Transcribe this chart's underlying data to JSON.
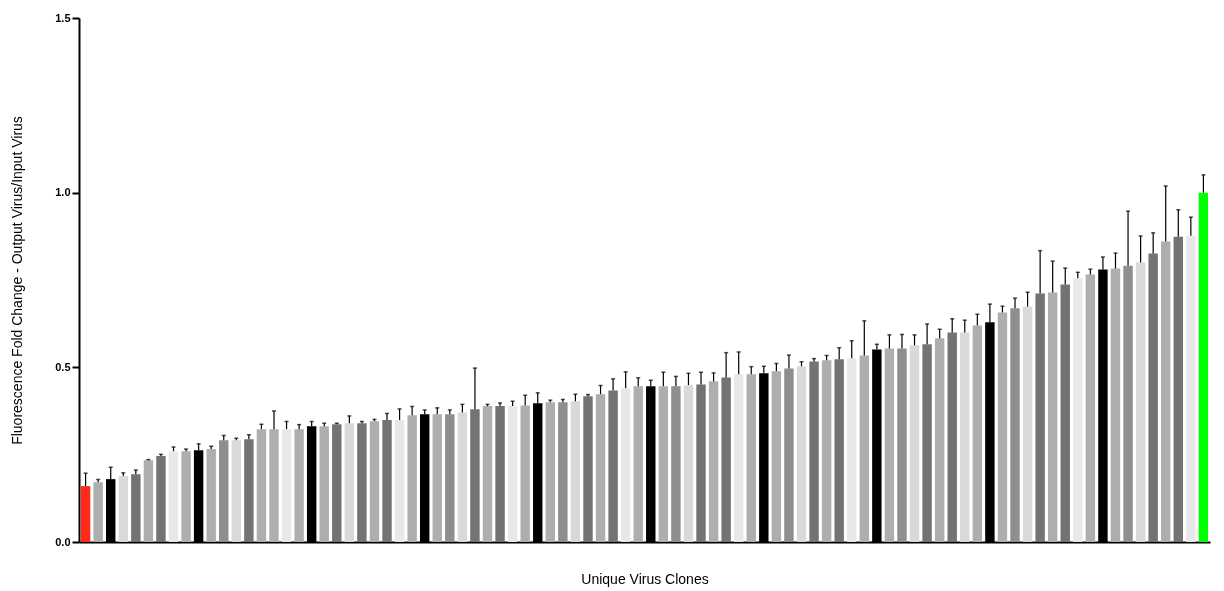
{
  "chart_data": {
    "type": "bar",
    "xlabel": "Unique Virus Clones",
    "ylabel": "Fluorescence Fold Change - Output Virus/Input Virus",
    "categories": [
      null,
      null,
      null,
      null,
      null,
      null,
      null,
      null,
      null,
      null,
      null,
      null,
      null,
      null,
      null,
      null,
      null,
      null,
      null,
      null,
      null,
      null,
      null,
      null,
      null,
      null,
      null,
      null,
      null,
      null,
      null,
      null,
      null,
      null,
      null,
      null,
      null,
      null,
      null,
      null,
      null,
      null,
      null,
      null,
      null,
      null,
      null,
      null,
      null,
      null,
      null,
      null,
      null,
      null,
      null,
      null,
      null,
      null,
      null,
      null,
      null,
      null,
      null,
      null,
      null,
      null,
      null,
      null,
      null,
      null,
      null,
      null,
      null,
      null,
      null,
      null,
      null,
      null,
      null,
      null,
      null,
      null,
      null,
      null,
      null,
      null,
      null,
      null,
      null,
      null
    ],
    "values": [
      0.16,
      0.171,
      0.18,
      0.189,
      0.194,
      0.234,
      0.246,
      0.26,
      0.26,
      0.263,
      0.266,
      0.291,
      0.291,
      0.294,
      0.323,
      0.323,
      0.323,
      0.323,
      0.331,
      0.331,
      0.337,
      0.34,
      0.34,
      0.346,
      0.349,
      0.349,
      0.363,
      0.366,
      0.366,
      0.366,
      0.371,
      0.38,
      0.389,
      0.389,
      0.389,
      0.391,
      0.397,
      0.4,
      0.4,
      0.403,
      0.417,
      0.423,
      0.434,
      0.44,
      0.446,
      0.446,
      0.446,
      0.446,
      0.449,
      0.451,
      0.46,
      0.471,
      0.48,
      0.48,
      0.483,
      0.489,
      0.497,
      0.503,
      0.517,
      0.52,
      0.523,
      0.526,
      0.534,
      0.551,
      0.554,
      0.554,
      0.563,
      0.566,
      0.583,
      0.6,
      0.6,
      0.62,
      0.629,
      0.657,
      0.669,
      0.674,
      0.711,
      0.714,
      0.737,
      0.755,
      0.766,
      0.78,
      0.783,
      0.791,
      0.8,
      0.826,
      0.86,
      0.874,
      0.877,
      1.0
    ],
    "errors": [
      [
        0.16,
        0.197
      ],
      [
        0.171,
        0.179
      ],
      [
        0.18,
        0.214
      ],
      [
        0.189,
        0.198
      ],
      [
        0.194,
        0.206
      ],
      [
        0.234,
        0.236
      ],
      [
        0.246,
        0.251
      ],
      [
        0.26,
        0.272
      ],
      [
        0.26,
        0.266
      ],
      [
        0.263,
        0.281
      ],
      [
        0.266,
        0.274
      ],
      [
        0.291,
        0.305
      ],
      [
        0.291,
        0.297
      ],
      [
        0.294,
        0.307
      ],
      [
        0.323,
        0.337
      ],
      [
        0.323,
        0.375
      ],
      [
        0.323,
        0.345
      ],
      [
        0.323,
        0.336
      ],
      [
        0.331,
        0.345
      ],
      [
        0.331,
        0.34
      ],
      [
        0.337,
        0.34
      ],
      [
        0.34,
        0.361
      ],
      [
        0.34,
        0.345
      ],
      [
        0.346,
        0.351
      ],
      [
        0.349,
        0.368
      ],
      [
        0.349,
        0.381
      ],
      [
        0.363,
        0.388
      ],
      [
        0.366,
        0.378
      ],
      [
        0.366,
        0.384
      ],
      [
        0.366,
        0.378
      ],
      [
        0.371,
        0.394
      ],
      [
        0.38,
        0.498
      ],
      [
        0.389,
        0.394
      ],
      [
        0.389,
        0.398
      ],
      [
        0.389,
        0.403
      ],
      [
        0.391,
        0.42
      ],
      [
        0.397,
        0.427
      ],
      [
        0.4,
        0.406
      ],
      [
        0.4,
        0.408
      ],
      [
        0.403,
        0.423
      ],
      [
        0.417,
        0.422
      ],
      [
        0.423,
        0.448
      ],
      [
        0.434,
        0.467
      ],
      [
        0.44,
        0.487
      ],
      [
        0.446,
        0.47
      ],
      [
        0.446,
        0.463
      ],
      [
        0.446,
        0.486
      ],
      [
        0.446,
        0.474
      ],
      [
        0.449,
        0.483
      ],
      [
        0.451,
        0.486
      ],
      [
        0.46,
        0.484
      ],
      [
        0.471,
        0.542
      ],
      [
        0.48,
        0.544
      ],
      [
        0.48,
        0.502
      ],
      [
        0.483,
        0.503
      ],
      [
        0.489,
        0.511
      ],
      [
        0.497,
        0.535
      ],
      [
        0.503,
        0.516
      ],
      [
        0.517,
        0.525
      ],
      [
        0.52,
        0.534
      ],
      [
        0.523,
        0.556
      ],
      [
        0.526,
        0.576
      ],
      [
        0.534,
        0.633
      ],
      [
        0.551,
        0.566
      ],
      [
        0.554,
        0.593
      ],
      [
        0.554,
        0.594
      ],
      [
        0.563,
        0.593
      ],
      [
        0.566,
        0.624
      ],
      [
        0.583,
        0.609
      ],
      [
        0.6,
        0.639
      ],
      [
        0.6,
        0.635
      ],
      [
        0.62,
        0.652
      ],
      [
        0.629,
        0.681
      ],
      [
        0.657,
        0.675
      ],
      [
        0.669,
        0.698
      ],
      [
        0.674,
        0.715
      ],
      [
        0.711,
        0.834
      ],
      [
        0.714,
        0.804
      ],
      [
        0.737,
        0.784
      ],
      [
        0.755,
        0.772
      ],
      [
        0.766,
        0.781
      ],
      [
        0.78,
        0.816
      ],
      [
        0.783,
        0.827
      ],
      [
        0.791,
        0.947
      ],
      [
        0.8,
        0.876
      ],
      [
        0.826,
        0.885
      ],
      [
        0.86,
        1.019
      ],
      [
        0.874,
        0.951
      ],
      [
        0.877,
        0.93
      ],
      [
        1.0,
        1.051
      ]
    ],
    "colors": [
      "#ff2a1a",
      "#aeaeae",
      "#000000",
      "#d9d9d9",
      "#737373",
      "#aeaeae",
      "#737373",
      "#e8e8e8",
      "#aeaeae",
      "#000000",
      "#aeaeae",
      "#8e8e8e",
      "#d9d9d9",
      "#737373",
      "#aeaeae",
      "#aeaeae",
      "#e8e8e8",
      "#aeaeae",
      "#000000",
      "#aeaeae",
      "#737373",
      "#d9d9d9",
      "#737373",
      "#aeaeae",
      "#737373",
      "#e8e8e8",
      "#aeaeae",
      "#000000",
      "#aeaeae",
      "#8e8e8e",
      "#d9d9d9",
      "#737373",
      "#aeaeae",
      "#737373",
      "#e8e8e8",
      "#aeaeae",
      "#000000",
      "#aeaeae",
      "#8e8e8e",
      "#d9d9d9",
      "#737373",
      "#aeaeae",
      "#737373",
      "#e8e8e8",
      "#aeaeae",
      "#000000",
      "#aeaeae",
      "#8e8e8e",
      "#d9d9d9",
      "#737373",
      "#aeaeae",
      "#737373",
      "#e8e8e8",
      "#aeaeae",
      "#000000",
      "#aeaeae",
      "#8e8e8e",
      "#d9d9d9",
      "#737373",
      "#aeaeae",
      "#737373",
      "#e8e8e8",
      "#aeaeae",
      "#000000",
      "#aeaeae",
      "#8e8e8e",
      "#d9d9d9",
      "#737373",
      "#aeaeae",
      "#737373",
      "#d9d9d9",
      "#aeaeae",
      "#000000",
      "#aeaeae",
      "#8e8e8e",
      "#d9d9d9",
      "#737373",
      "#aeaeae",
      "#737373",
      "#e8e8e8",
      "#aeaeae",
      "#000000",
      "#aeaeae",
      "#8e8e8e",
      "#d9d9d9",
      "#737373",
      "#aeaeae",
      "#737373",
      "#e8e8e8",
      "#00ff00"
    ],
    "ylim": [
      0,
      1.5
    ],
    "yticks": [
      {
        "value": 0,
        "label": "0.0"
      },
      {
        "value": 0.5,
        "label": "0.5"
      },
      {
        "value": 1,
        "label": "1.0"
      },
      {
        "value": 1.5,
        "label": "1.5"
      }
    ],
    "tick_labels": "y",
    "grid": false
  }
}
